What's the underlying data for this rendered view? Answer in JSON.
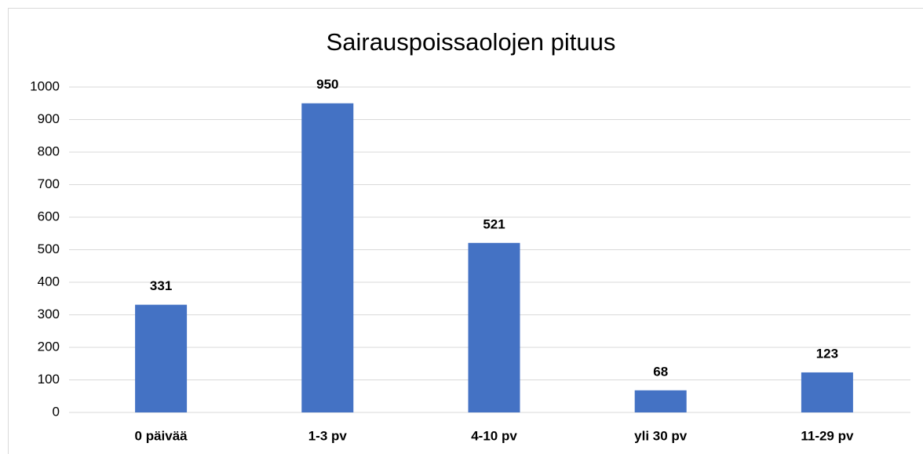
{
  "chart_data": {
    "type": "bar",
    "title": "Sairauspoissaolojen pituus",
    "categories": [
      "0 päivää",
      "1-3 pv",
      "4-10 pv",
      "yli 30 pv",
      "11-29 pv"
    ],
    "values": [
      331,
      950,
      521,
      68,
      123
    ],
    "color": "#4472c4",
    "ylim": [
      0,
      1000
    ],
    "yticks": [
      0,
      100,
      200,
      300,
      400,
      500,
      600,
      700,
      800,
      900,
      1000
    ],
    "grid": true
  }
}
